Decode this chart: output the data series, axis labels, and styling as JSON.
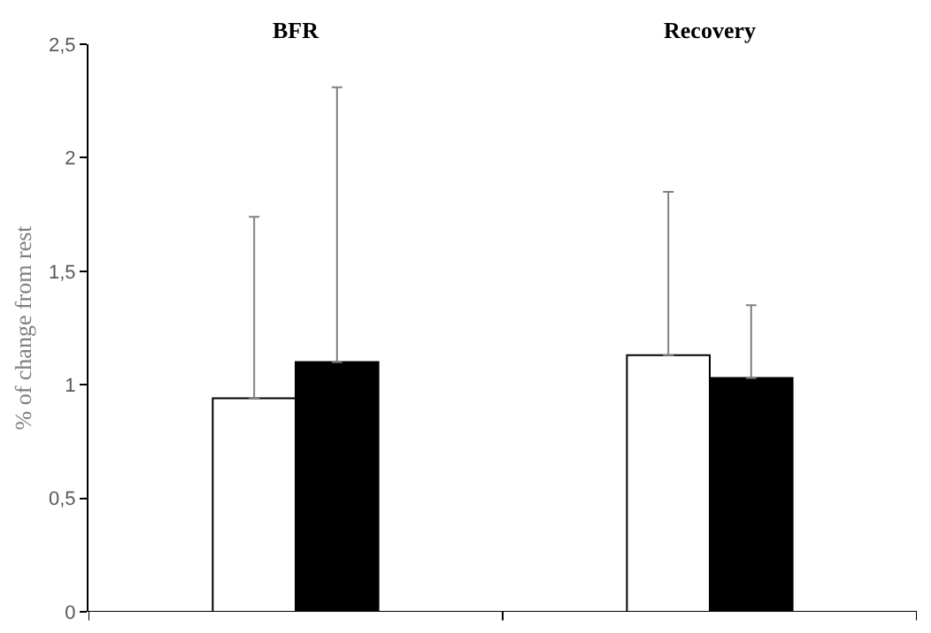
{
  "chart_data": {
    "type": "bar",
    "ylabel": "% of change from rest",
    "categories": [
      "BFR",
      "Recovery"
    ],
    "series": [
      {
        "color": "#ffffff",
        "values": [
          0.94,
          1.13
        ],
        "errors": [
          [
            0.94,
            1.74
          ],
          [
            1.13,
            1.85
          ]
        ]
      },
      {
        "color": "#000000",
        "values": [
          1.1,
          1.03
        ],
        "errors": [
          [
            1.1,
            2.31
          ],
          [
            1.03,
            1.35
          ]
        ]
      }
    ],
    "ylim": [
      0,
      2.5
    ],
    "yticks": [
      0,
      {
        "value": 0.5,
        "label": "0,5"
      },
      1,
      {
        "value": 1.5,
        "label": "1,5"
      },
      2,
      {
        "value": 2.5,
        "label": "2,5"
      }
    ],
    "grid": false
  }
}
